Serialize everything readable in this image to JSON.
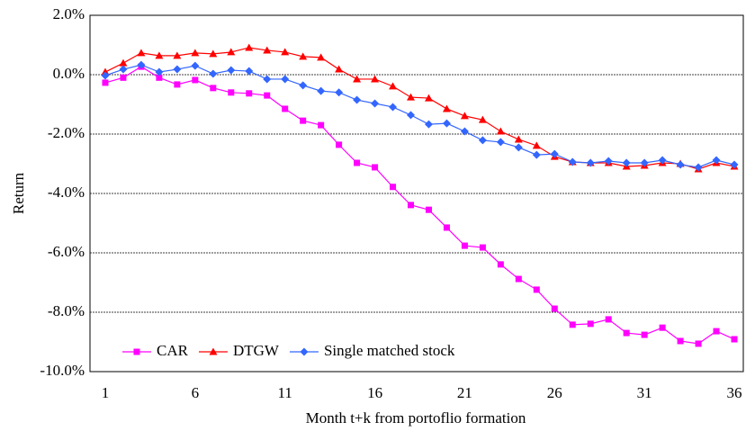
{
  "chart_data": {
    "type": "line",
    "y_label": "Return",
    "x_label": "Month t+k from portoflio formation",
    "categories": [
      1,
      null,
      null,
      null,
      null,
      6,
      null,
      null,
      null,
      null,
      11,
      null,
      null,
      null,
      null,
      16,
      null,
      null,
      null,
      null,
      21,
      null,
      null,
      null,
      null,
      26,
      null,
      null,
      null,
      null,
      31,
      null,
      null,
      null,
      null,
      36
    ],
    "ylim": [
      -10,
      2
    ],
    "yticks": [
      {
        "value": -10,
        "label": "-10.0%"
      },
      {
        "value": -8,
        "label": "-8.0%"
      },
      {
        "value": -6,
        "label": "-6.0%"
      },
      {
        "value": -4,
        "label": "-4.0%"
      },
      {
        "value": -2,
        "label": "-2.0%"
      },
      {
        "value": 0,
        "label": "0.0%"
      },
      {
        "value": 2,
        "label": "2.0%"
      }
    ],
    "grid": true,
    "legend": "lower left",
    "series": [
      {
        "name": "CAR",
        "color": "#ff00ff",
        "marker": "square",
        "values": [
          -0.27,
          -0.1,
          0.27,
          -0.1,
          -0.33,
          -0.18,
          -0.45,
          -0.6,
          -0.63,
          -0.7,
          -1.15,
          -1.55,
          -1.7,
          -2.36,
          -2.97,
          -3.12,
          -3.78,
          -4.39,
          -4.55,
          -5.15,
          -5.76,
          -5.82,
          -6.39,
          -6.88,
          -7.24,
          -7.88,
          -8.42,
          -8.39,
          -8.24,
          -8.7,
          -8.76,
          -8.52,
          -8.97,
          -9.06,
          -8.64,
          -8.91
        ]
      },
      {
        "name": "DTGW",
        "color": "#ff0000",
        "marker": "triangle",
        "values": [
          0.09,
          0.39,
          0.73,
          0.64,
          0.64,
          0.73,
          0.7,
          0.76,
          0.91,
          0.82,
          0.76,
          0.61,
          0.58,
          0.18,
          -0.15,
          -0.15,
          -0.39,
          -0.76,
          -0.79,
          -1.15,
          -1.39,
          -1.52,
          -1.91,
          -2.18,
          -2.39,
          -2.76,
          -2.94,
          -2.97,
          -2.97,
          -3.09,
          -3.06,
          -2.97,
          -3.0,
          -3.18,
          -2.97,
          -3.09
        ]
      },
      {
        "name": "Single matched stock",
        "color": "#3366ff",
        "marker": "diamond",
        "values": [
          -0.03,
          0.18,
          0.33,
          0.09,
          0.18,
          0.3,
          0.03,
          0.15,
          0.12,
          -0.15,
          -0.15,
          -0.36,
          -0.55,
          -0.6,
          -0.85,
          -0.97,
          -1.09,
          -1.36,
          -1.67,
          -1.64,
          -1.91,
          -2.21,
          -2.27,
          -2.45,
          -2.7,
          -2.67,
          -2.94,
          -2.97,
          -2.91,
          -2.97,
          -2.97,
          -2.88,
          -3.03,
          -3.12,
          -2.88,
          -3.03
        ]
      }
    ]
  }
}
